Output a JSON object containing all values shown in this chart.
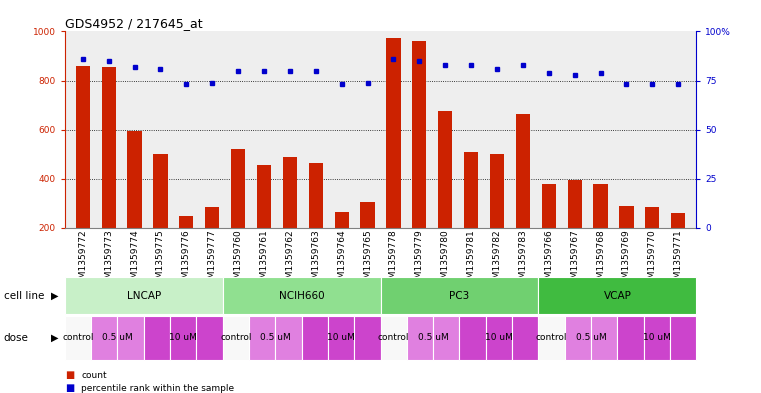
{
  "title": "GDS4952 / 217645_at",
  "samples": [
    "GSM1359772",
    "GSM1359773",
    "GSM1359774",
    "GSM1359775",
    "GSM1359776",
    "GSM1359777",
    "GSM1359760",
    "GSM1359761",
    "GSM1359762",
    "GSM1359763",
    "GSM1359764",
    "GSM1359765",
    "GSM1359778",
    "GSM1359779",
    "GSM1359780",
    "GSM1359781",
    "GSM1359782",
    "GSM1359783",
    "GSM1359766",
    "GSM1359767",
    "GSM1359768",
    "GSM1359769",
    "GSM1359770",
    "GSM1359771"
  ],
  "counts": [
    860,
    855,
    595,
    500,
    248,
    285,
    520,
    458,
    490,
    465,
    265,
    305,
    975,
    960,
    678,
    510,
    500,
    665,
    378,
    395,
    378,
    290,
    285,
    262
  ],
  "percentiles": [
    86,
    85,
    82,
    81,
    73,
    74,
    80,
    80,
    80,
    80,
    73,
    74,
    86,
    85,
    83,
    83,
    81,
    83,
    79,
    78,
    79,
    73,
    73,
    73
  ],
  "cell_lines": [
    {
      "name": "LNCAP",
      "start": 0,
      "end": 6,
      "color": "#c8f0c8"
    },
    {
      "name": "NCIH660",
      "start": 6,
      "end": 12,
      "color": "#90e090"
    },
    {
      "name": "PC3",
      "start": 12,
      "end": 18,
      "color": "#70d070"
    },
    {
      "name": "VCAP",
      "start": 18,
      "end": 24,
      "color": "#40bb40"
    }
  ],
  "dose_colors": {
    "control": "#f8f8f8",
    "0.5 uM": "#e080e0",
    "10 uM": "#cc44cc"
  },
  "dose_assignments": [
    "control",
    "0.5 uM",
    "0.5 uM",
    "10 uM",
    "10 uM",
    "10 uM",
    "control",
    "0.5 uM",
    "0.5 uM",
    "10 uM",
    "10 uM",
    "10 uM",
    "control",
    "0.5 uM",
    "0.5 uM",
    "10 uM",
    "10 uM",
    "10 uM",
    "control",
    "0.5 uM",
    "0.5 uM",
    "10 uM",
    "10 uM",
    "10 uM"
  ],
  "bar_color": "#cc2200",
  "dot_color": "#0000cc",
  "bg_color": "#eeeeee",
  "ylim_left": [
    200,
    1000
  ],
  "ylim_right": [
    0,
    100
  ],
  "yticks_left": [
    200,
    400,
    600,
    800,
    1000
  ],
  "yticks_right": [
    0,
    25,
    50,
    75,
    100
  ],
  "grid_values": [
    400,
    600,
    800
  ],
  "title_fontsize": 9,
  "tick_fontsize": 6.5,
  "annotation_fontsize": 7.5
}
